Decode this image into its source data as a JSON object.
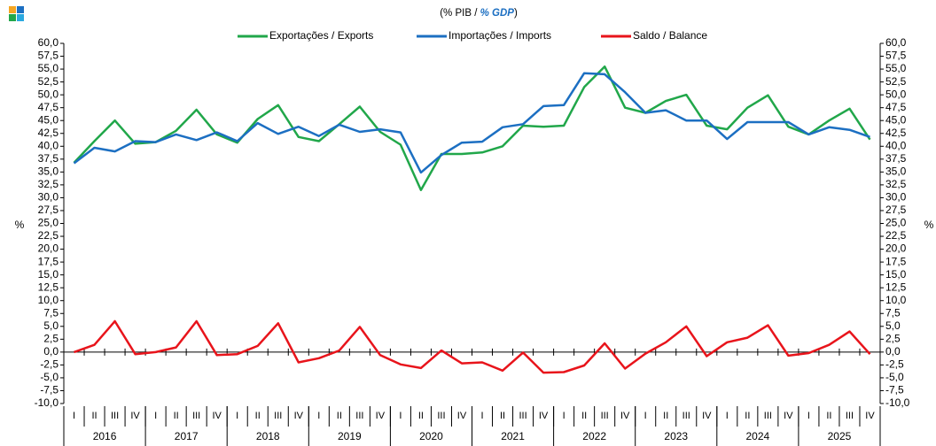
{
  "chart_data": {
    "type": "line",
    "subtitle_parts": [
      "(% PIB / ",
      "% GDP",
      ")"
    ],
    "y_label": "%",
    "y2_label": "%",
    "categories": [
      "I",
      "II",
      "III",
      "IV",
      "I",
      "II",
      "III",
      "IV",
      "I",
      "II",
      "III",
      "IV",
      "I",
      "II",
      "III",
      "IV",
      "I",
      "II",
      "III",
      "IV",
      "I",
      "II",
      "III",
      "IV",
      "I",
      "II",
      "III",
      "IV",
      "I",
      "II",
      "III",
      "IV",
      "I",
      "II",
      "III",
      "IV",
      "I",
      "II",
      "III",
      "IV"
    ],
    "year_labels": [
      "2016",
      "2017",
      "2018",
      "2019",
      "2020",
      "2021",
      "2022",
      "2023",
      "2024",
      "2025"
    ],
    "series": [
      {
        "name": "Exportações / Exports",
        "color": "#21a74a",
        "values": [
          36.8,
          41,
          45,
          40.5,
          40.8,
          43,
          47.1,
          42.3,
          40.7,
          45.3,
          48,
          41.8,
          41,
          44.3,
          47.7,
          42.8,
          40.3,
          31.5,
          38.5,
          38.5,
          38.8,
          40,
          44,
          43.8,
          44,
          51.5,
          55.5,
          47.5,
          46.5,
          48.8,
          50,
          44,
          43.3,
          47.5,
          49.9,
          43.8,
          42.3,
          45,
          47.3,
          41.3
        ]
      },
      {
        "name": "Importações / Imports",
        "color": "#1c6fc2",
        "values": [
          36.7,
          39.7,
          39,
          41,
          40.8,
          42.3,
          41.2,
          42.7,
          41,
          44.5,
          42.4,
          43.8,
          42,
          44.2,
          42.8,
          43.3,
          42.7,
          34.9,
          38.3,
          40.7,
          40.9,
          43.7,
          44.3,
          47.8,
          48,
          54.2,
          54,
          50.5,
          46.5,
          47,
          45,
          45,
          41.4,
          44.7,
          44.7,
          44.7,
          42.3,
          43.7,
          43.2,
          41.8
        ]
      },
      {
        "name": "Saldo / Balance",
        "color": "#e8141b",
        "values": [
          0,
          1.4,
          6,
          -0.4,
          0,
          0.9,
          6,
          -0.6,
          -0.4,
          1.2,
          5.6,
          -2,
          -1.2,
          0.3,
          4.9,
          -0.6,
          -2.4,
          -3.1,
          0.3,
          -2.2,
          -2,
          -3.6,
          -0.1,
          -4,
          -3.9,
          -2.6,
          1.7,
          -3.2,
          -0.3,
          1.9,
          5,
          -0.8,
          1.9,
          2.8,
          5.2,
          -0.7,
          -0.2,
          1.4,
          4,
          -0.4
        ]
      }
    ],
    "ylim": [
      -10,
      60
    ],
    "y2lim": [
      -10,
      60
    ],
    "yticks": [
      {
        "value": -10,
        "label": "-10,0"
      },
      {
        "value": -7.5,
        "label": "-7,5"
      },
      {
        "value": -5,
        "label": "-5,0"
      },
      {
        "value": -2.5,
        "label": "-2,5"
      },
      {
        "value": 0,
        "label": "0,0"
      },
      {
        "value": 2.5,
        "label": "2,5"
      },
      {
        "value": 5,
        "label": "5,0"
      },
      {
        "value": 7.5,
        "label": "7,5"
      },
      {
        "value": 10,
        "label": "10,0"
      },
      {
        "value": 12.5,
        "label": "12,5"
      },
      {
        "value": 15,
        "label": "15,0"
      },
      {
        "value": 17.5,
        "label": "17,5"
      },
      {
        "value": 20,
        "label": "20,0"
      },
      {
        "value": 22.5,
        "label": "22,5"
      },
      {
        "value": 25,
        "label": "25,0"
      },
      {
        "value": 27.5,
        "label": "27,5"
      },
      {
        "value": 30,
        "label": "30,0"
      },
      {
        "value": 32.5,
        "label": "32,5"
      },
      {
        "value": 35,
        "label": "35,0"
      },
      {
        "value": 37.5,
        "label": "37,5"
      },
      {
        "value": 40,
        "label": "40,0"
      },
      {
        "value": 42.5,
        "label": "42,5"
      },
      {
        "value": 45,
        "label": "45,0"
      },
      {
        "value": 47.5,
        "label": "47,5"
      },
      {
        "value": 50,
        "label": "50,0"
      },
      {
        "value": 52.5,
        "label": "52,5"
      },
      {
        "value": 55,
        "label": "55,0"
      },
      {
        "value": 57.5,
        "label": "57,5"
      },
      {
        "value": 60,
        "label": "60,0"
      }
    ],
    "y2ticks": [
      {
        "value": -10,
        "label": "-10,0"
      },
      {
        "value": -7.5,
        "label": "-7,5"
      },
      {
        "value": -5,
        "label": "-5,0"
      },
      {
        "value": -2.5,
        "label": "-2,5"
      },
      {
        "value": 0,
        "label": "0,0"
      },
      {
        "value": 2.5,
        "label": "2,5"
      },
      {
        "value": 5,
        "label": "5,0"
      },
      {
        "value": 7.5,
        "label": "7,5"
      },
      {
        "value": 10,
        "label": "10,0"
      },
      {
        "value": 12.5,
        "label": "12,5"
      },
      {
        "value": 15,
        "label": "15,0"
      },
      {
        "value": 17.5,
        "label": "17,5"
      },
      {
        "value": 20,
        "label": "20,0"
      },
      {
        "value": 22.5,
        "label": "22,5"
      },
      {
        "value": 25,
        "label": "25,0"
      },
      {
        "value": 27.5,
        "label": "27,5"
      },
      {
        "value": 30,
        "label": "30,0"
      },
      {
        "value": 32.5,
        "label": "32,5"
      },
      {
        "value": 35,
        "label": "35,0"
      },
      {
        "value": 37.5,
        "label": "37,5"
      },
      {
        "value": 40,
        "label": "40,0"
      },
      {
        "value": 42.5,
        "label": "42,5"
      },
      {
        "value": 45,
        "label": "45,0"
      },
      {
        "value": 47.5,
        "label": "47,5"
      },
      {
        "value": 50,
        "label": "50,0"
      },
      {
        "value": 52.5,
        "label": "52,5"
      },
      {
        "value": 55,
        "label": "55,0"
      },
      {
        "value": 57.5,
        "label": "57,5"
      },
      {
        "value": 60,
        "label": "60,0"
      }
    ],
    "grid": false
  }
}
